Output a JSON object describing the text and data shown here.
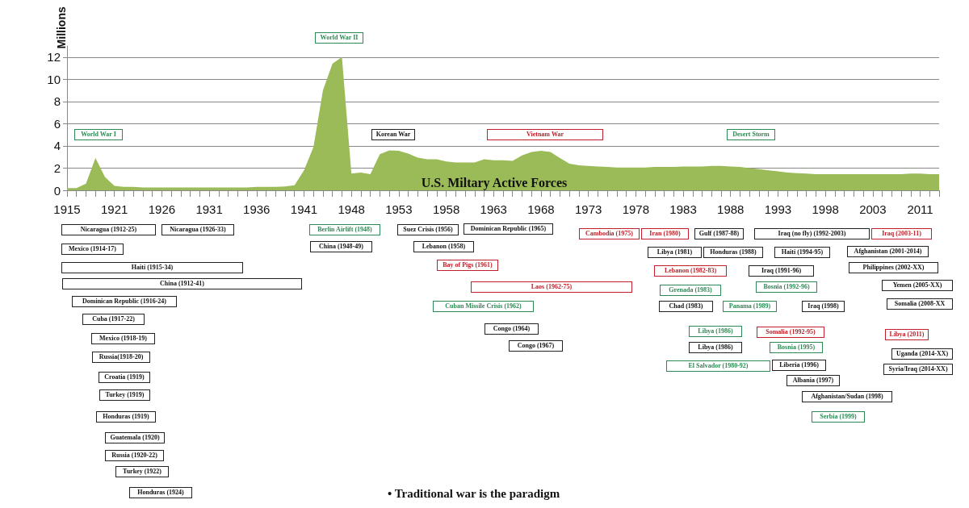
{
  "chart_data": {
    "type": "area",
    "title": "U.S. Miltary Active Forces",
    "ylabel": "Millions",
    "categories": [
      "1915",
      null,
      null,
      null,
      null,
      "1921",
      null,
      null,
      null,
      null,
      "1926",
      null,
      null,
      null,
      null,
      "1931",
      null,
      null,
      null,
      null,
      "1936",
      null,
      null,
      null,
      null,
      "1941",
      null,
      null,
      null,
      null,
      "1948",
      null,
      null,
      null,
      null,
      "1953",
      null,
      null,
      null,
      null,
      "1958",
      null,
      null,
      null,
      null,
      "1963",
      null,
      null,
      null,
      null,
      "1968",
      null,
      null,
      null,
      null,
      "1973",
      null,
      null,
      null,
      null,
      "1978",
      null,
      null,
      null,
      null,
      "1983",
      null,
      null,
      null,
      null,
      "1988",
      null,
      null,
      null,
      null,
      "1993",
      null,
      null,
      null,
      null,
      "1998",
      null,
      null,
      null,
      null,
      "2003",
      null,
      null,
      null,
      null,
      "2011",
      null,
      null
    ],
    "values": [
      0.2,
      0.2,
      0.6,
      2.9,
      1.2,
      0.4,
      0.3,
      0.3,
      0.25,
      0.25,
      0.25,
      0.25,
      0.25,
      0.25,
      0.25,
      0.25,
      0.25,
      0.25,
      0.25,
      0.25,
      0.3,
      0.3,
      0.3,
      0.35,
      0.45,
      1.8,
      3.9,
      9.0,
      11.4,
      12.0,
      1.5,
      1.6,
      1.45,
      3.25,
      3.6,
      3.55,
      3.3,
      2.95,
      2.8,
      2.8,
      2.6,
      2.5,
      2.5,
      2.5,
      2.8,
      2.7,
      2.7,
      2.65,
      3.15,
      3.45,
      3.55,
      3.45,
      2.9,
      2.4,
      2.25,
      2.2,
      2.15,
      2.1,
      2.05,
      2.05,
      2.05,
      2.05,
      2.1,
      2.1,
      2.1,
      2.15,
      2.15,
      2.15,
      2.2,
      2.2,
      2.15,
      2.1,
      2.0,
      1.9,
      1.8,
      1.7,
      1.6,
      1.55,
      1.5,
      1.45,
      1.45,
      1.45,
      1.45,
      1.45,
      1.45,
      1.45,
      1.45,
      1.45,
      1.45,
      1.5,
      1.5,
      1.45,
      1.45
    ],
    "color": "#9bbb59",
    "ylim": [
      0,
      13
    ],
    "yticks": [
      0,
      2,
      4,
      6,
      8,
      10,
      12
    ],
    "grid": "y",
    "annotations": [
      "World War I",
      "World War II",
      "Korean War",
      "Vietnam War",
      "Desert Storm",
      "Nicaragua (1912-25)",
      "Nicaragua (1926-33)",
      "Mexico (1914-17)",
      "Haiti (1915-34)",
      "China (1912-41)",
      "Dominican Republic (1916-24)",
      "Cuba (1917-22)",
      "Mexico (1918-19)",
      "Russia(1918-20)",
      "Croatia (1919)",
      "Turkey (1919)",
      "Honduras (1919)",
      "Guatemala (1920)",
      "Russia (1920-22)",
      "Turkey (1922)",
      "Honduras (1924)",
      "Berlin Airlift (1948)",
      "China (1948-49)",
      "Suez Crisis (1956)",
      "Dominican Republic (1965)",
      "Lebanon (1958)",
      "Bay of Pigs (1961)",
      "Laos (1962-75)",
      "Cuban Missile Crisis (1962)",
      "Congo (1964)",
      "Congo (1967)",
      "Cambodia (1975)",
      "Iran (1980)",
      "Gulf (1987-88)",
      "Iraq (no fly) (1992-2003)",
      "Iraq (2003-11)",
      "Libya (1981)",
      "Honduras  (1988)",
      "Haiti (1994-95)",
      "Afghanistan (2001-2014)",
      "Lebanon (1982-83)",
      "Iraq (1991-96)",
      "Philippines (2002-XX)",
      "Grenada (1983)",
      "Bosnia (1992-96)",
      "Yemen (2005-XX)",
      "Chad (1983)",
      "Panama (1989)",
      "Iraq (1998)",
      "Somalia (2008-XX",
      "Libya (1986)",
      "Somalia (1992-95)",
      "Libya (2011)",
      "Libya (1986)",
      "Bosnia (1995)",
      "Uganda (2014-XX)",
      "El Salvador (1980-92)",
      "Liberia (1996)",
      "Syria/Iraq (2014-XX)",
      "Albania (1997)",
      "Afghanistan/Sudan (1998)",
      "Serbia (1999)",
      "• Traditional war is the paradigm"
    ]
  }
}
